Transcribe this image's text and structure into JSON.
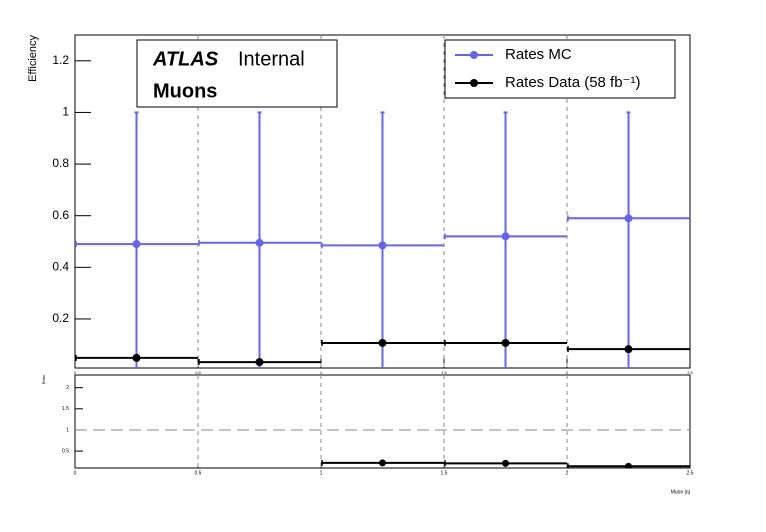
{
  "chart_data": [
    {
      "type": "errorbar",
      "ylabel": "Efficiency",
      "annotations": {
        "experiment": "ATLAS",
        "status": "Internal",
        "channel": "Muons"
      },
      "x": [
        0.25,
        0.75,
        1.25,
        1.75,
        2.25
      ],
      "xerr": [
        0.25,
        0.25,
        0.25,
        0.25,
        0.25
      ],
      "series": [
        {
          "name": "Rates MC",
          "color": "#6464f0",
          "values": [
            0.49,
            0.495,
            0.485,
            0.52,
            0.59
          ],
          "lower": [
            0,
            0,
            0,
            0,
            0
          ],
          "upper": [
            1,
            1,
            1,
            1,
            1
          ]
        },
        {
          "name": "Rates Data (58 fb⁻¹)",
          "color": "#000000",
          "values": [
            0.049,
            0.033,
            0.107,
            0.107,
            0.083
          ]
        }
      ],
      "xlim": [
        0,
        2.5
      ],
      "xticks": [
        0,
        0.5,
        1,
        1.5,
        2,
        2.5
      ],
      "ylim": [
        0.01,
        1.3
      ],
      "yticks": [
        0.2,
        0.4,
        0.6,
        0.8,
        1,
        1.2
      ],
      "grid_x": true,
      "legend": "top-right"
    },
    {
      "type": "errorbar",
      "ylabel": "Ratio",
      "xlabel": "Muon |η|",
      "x": [
        0.25,
        0.75,
        1.25,
        1.75,
        2.25
      ],
      "xerr": [
        0.25,
        0.25,
        0.25,
        0.25,
        0.25
      ],
      "series": [
        {
          "color": "#000000",
          "values": [
            null,
            null,
            0.22,
            0.21,
            0.14
          ]
        }
      ],
      "xlim": [
        0,
        2.5
      ],
      "xticks": [
        0,
        0.5,
        1,
        1.5,
        2,
        2.5
      ],
      "ylim": [
        0.1,
        2.3
      ],
      "yticks": [
        0.5,
        1,
        1.5,
        2
      ],
      "reference_line": 1,
      "grid_x": true
    }
  ]
}
